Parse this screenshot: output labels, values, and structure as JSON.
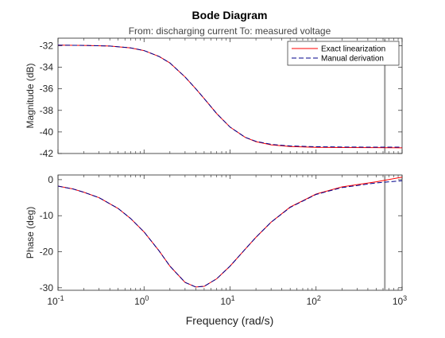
{
  "chart_data": {
    "type": "line",
    "title": "Bode Diagram",
    "subtitle": "From: discharging current  To: measured voltage",
    "xlabel": "Frequency (rad/s)",
    "xscale": "log",
    "xlim": [
      0.1,
      1000
    ],
    "x_ticks": [
      0.1,
      1,
      10,
      100,
      1000
    ],
    "x_tick_labels": [
      {
        "base": "10",
        "exp": "-1"
      },
      {
        "base": "10",
        "exp": "0"
      },
      {
        "base": "10",
        "exp": "1"
      },
      {
        "base": "10",
        "exp": "2"
      },
      {
        "base": "10",
        "exp": "3"
      }
    ],
    "legend": {
      "placement": "top-right",
      "entries": [
        {
          "label": "Exact linearization",
          "color": "#ff0000",
          "dash": "solid"
        },
        {
          "label": "Manual derivation",
          "color": "#00008b",
          "dash": "dashed"
        }
      ]
    },
    "vertical_marker": {
      "x": 630,
      "color": "#999999"
    },
    "panels": [
      {
        "id": "magnitude",
        "ylabel": "Magnitude (dB)",
        "ylim": [
          -42,
          -31.3
        ],
        "y_ticks": [
          -42,
          -40,
          -38,
          -36,
          -34,
          -32
        ],
        "grid": false,
        "x_tick_labels_visible": false,
        "series": [
          {
            "name": "Exact linearization",
            "color": "#ff0000",
            "dash": "solid",
            "x": [
              0.1,
              0.2,
              0.4,
              0.7,
              1.0,
              1.5,
              2.0,
              3.0,
              4.0,
              5.0,
              7.0,
              10,
              15,
              20,
              30,
              50,
              100,
              200,
              500,
              1000
            ],
            "y": [
              -31.95,
              -31.97,
              -32.03,
              -32.2,
              -32.45,
              -33.0,
              -33.6,
              -34.9,
              -36.0,
              -36.9,
              -38.3,
              -39.55,
              -40.5,
              -40.9,
              -41.2,
              -41.35,
              -41.43,
              -41.45,
              -41.46,
              -41.47
            ]
          },
          {
            "name": "Manual derivation",
            "color": "#00008b",
            "dash": "dashed",
            "x": [
              0.1,
              0.2,
              0.4,
              0.7,
              1.0,
              1.5,
              2.0,
              3.0,
              4.0,
              5.0,
              7.0,
              10,
              15,
              20,
              30,
              50,
              100,
              200,
              500,
              1000
            ],
            "y": [
              -31.95,
              -31.97,
              -32.03,
              -32.2,
              -32.45,
              -33.0,
              -33.6,
              -34.9,
              -36.0,
              -36.9,
              -38.3,
              -39.55,
              -40.5,
              -40.87,
              -41.15,
              -41.3,
              -41.37,
              -41.4,
              -41.41,
              -41.41
            ]
          }
        ]
      },
      {
        "id": "phase",
        "ylabel": "Phase (deg)",
        "ylim": [
          -30.7,
          1.3
        ],
        "y_ticks": [
          -30,
          -20,
          -10,
          0
        ],
        "grid": false,
        "x_tick_labels_visible": true,
        "series": [
          {
            "name": "Exact linearization",
            "color": "#ff0000",
            "dash": "solid",
            "x": [
              0.1,
              0.15,
              0.2,
              0.3,
              0.5,
              0.7,
              1.0,
              1.5,
              2.0,
              3.0,
              4.0,
              5.0,
              7.0,
              10,
              15,
              20,
              30,
              50,
              100,
              200,
              500,
              1000
            ],
            "y": [
              -1.8,
              -2.6,
              -3.5,
              -5.0,
              -8.0,
              -10.8,
              -14.5,
              -19.8,
              -24.0,
              -28.5,
              -29.8,
              -29.6,
              -27.5,
              -24.0,
              -19.3,
              -16.0,
              -11.8,
              -7.6,
              -4.0,
              -2.0,
              -0.6,
              0.7
            ]
          },
          {
            "name": "Manual derivation",
            "color": "#00008b",
            "dash": "dashed",
            "x": [
              0.1,
              0.15,
              0.2,
              0.3,
              0.5,
              0.7,
              1.0,
              1.5,
              2.0,
              3.0,
              4.0,
              5.0,
              7.0,
              10,
              15,
              20,
              30,
              50,
              100,
              200,
              500,
              1000
            ],
            "y": [
              -1.8,
              -2.6,
              -3.5,
              -5.0,
              -8.0,
              -10.8,
              -14.5,
              -19.8,
              -24.0,
              -28.5,
              -29.8,
              -29.6,
              -27.5,
              -24.0,
              -19.3,
              -16.0,
              -11.8,
              -7.7,
              -4.1,
              -2.2,
              -0.9,
              -0.3
            ]
          }
        ]
      }
    ]
  }
}
